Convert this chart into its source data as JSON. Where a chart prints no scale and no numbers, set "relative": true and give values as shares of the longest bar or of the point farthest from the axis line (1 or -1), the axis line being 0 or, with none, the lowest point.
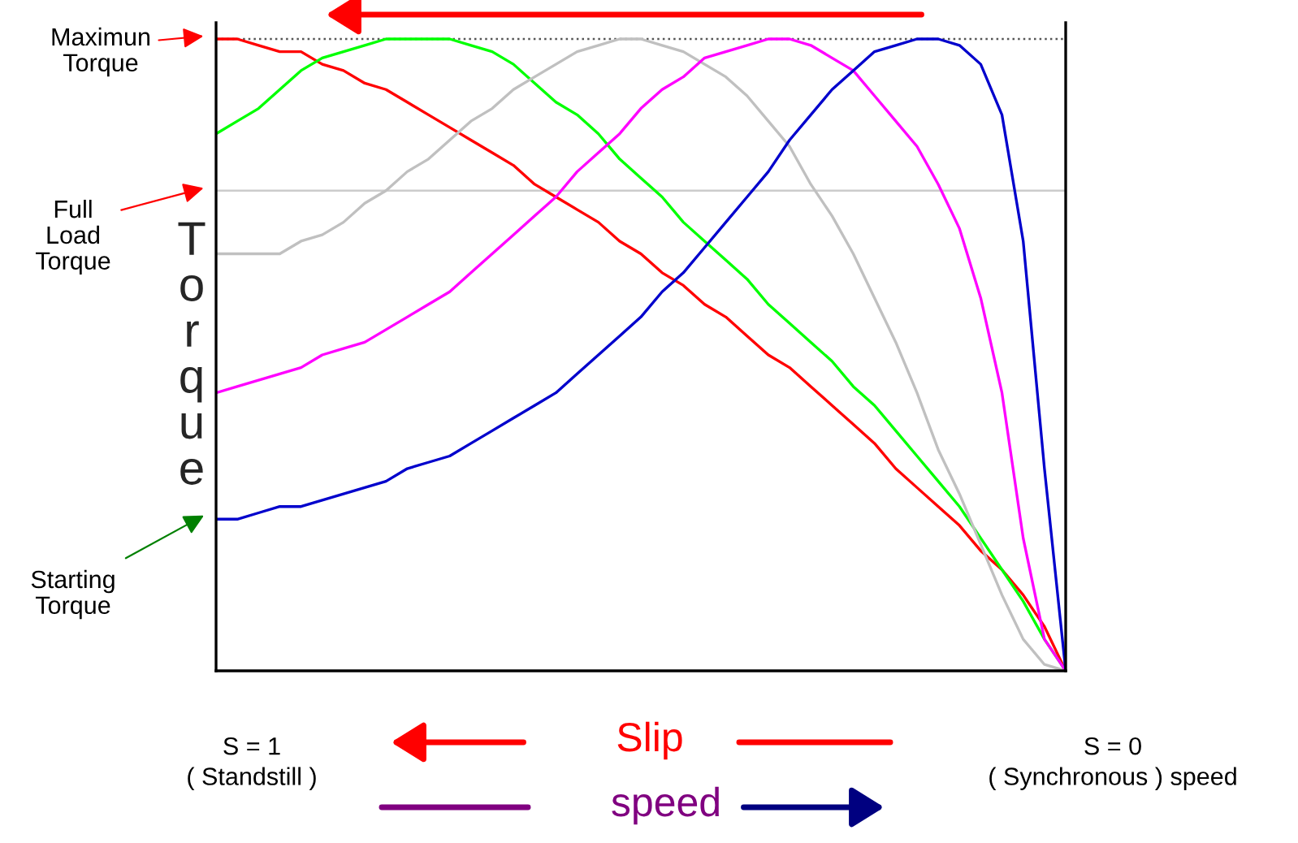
{
  "chart_data": {
    "type": "line",
    "relative": true,
    "ylabel": "Torque",
    "legend": false,
    "grid": false,
    "marker": "none",
    "line_style": "solid",
    "categories": [
      null,
      null,
      null,
      null,
      null,
      null,
      null,
      null,
      null,
      null,
      null,
      null,
      null,
      null,
      null,
      null,
      null,
      null,
      null,
      null,
      null,
      null,
      null,
      null,
      null,
      null,
      null,
      null,
      null,
      null,
      null,
      null,
      null,
      null,
      null,
      null,
      null,
      null,
      null,
      null,
      null
    ],
    "series": [
      {
        "color": "#ff0000",
        "values": [
          1.0,
          1.0,
          0.99,
          0.98,
          0.98,
          0.96,
          0.95,
          0.93,
          0.92,
          0.9,
          0.88,
          0.86,
          0.84,
          0.82,
          0.8,
          0.77,
          0.75,
          0.73,
          0.71,
          0.68,
          0.66,
          0.63,
          0.61,
          0.58,
          0.56,
          0.53,
          0.5,
          0.48,
          0.45,
          0.42,
          0.39,
          0.36,
          0.32,
          0.29,
          0.26,
          0.23,
          0.19,
          0.16,
          0.12,
          0.07,
          0
        ]
      },
      {
        "color": "#00ff00",
        "values": [
          0.85,
          0.87,
          0.89,
          0.92,
          0.95,
          0.97,
          0.98,
          0.99,
          1.0,
          1.0,
          1.0,
          1.0,
          0.99,
          0.98,
          0.96,
          0.93,
          0.9,
          0.88,
          0.85,
          0.81,
          0.78,
          0.75,
          0.71,
          0.68,
          0.65,
          0.62,
          0.58,
          0.55,
          0.52,
          0.49,
          0.45,
          0.42,
          0.38,
          0.34,
          0.3,
          0.26,
          0.21,
          0.16,
          0.11,
          0.05,
          0
        ]
      },
      {
        "color": "#c0c0c0",
        "values": [
          0.66,
          0.66,
          0.66,
          0.66,
          0.68,
          0.69,
          0.71,
          0.74,
          0.76,
          0.79,
          0.81,
          0.84,
          0.87,
          0.89,
          0.92,
          0.94,
          0.96,
          0.98,
          0.99,
          1.0,
          1.0,
          0.99,
          0.98,
          0.96,
          0.94,
          0.91,
          0.87,
          0.83,
          0.77,
          0.72,
          0.66,
          0.59,
          0.52,
          0.44,
          0.35,
          0.28,
          0.2,
          0.12,
          0.05,
          0.01,
          0
        ]
      },
      {
        "color": "#ff00ff",
        "values": [
          0.44,
          0.45,
          0.46,
          0.47,
          0.48,
          0.5,
          0.51,
          0.52,
          0.54,
          0.56,
          0.58,
          0.6,
          0.63,
          0.66,
          0.69,
          0.72,
          0.75,
          0.79,
          0.82,
          0.85,
          0.89,
          0.92,
          0.94,
          0.97,
          0.98,
          0.99,
          1.0,
          1.0,
          0.99,
          0.97,
          0.95,
          0.91,
          0.87,
          0.83,
          0.77,
          0.7,
          0.59,
          0.44,
          0.21,
          0.05,
          0
        ]
      },
      {
        "color": "#0000cc",
        "values": [
          0.24,
          0.24,
          0.25,
          0.26,
          0.26,
          0.27,
          0.28,
          0.29,
          0.3,
          0.32,
          0.33,
          0.34,
          0.36,
          0.38,
          0.4,
          0.42,
          0.44,
          0.47,
          0.5,
          0.53,
          0.56,
          0.6,
          0.63,
          0.67,
          0.71,
          0.75,
          0.79,
          0.84,
          0.88,
          0.92,
          0.95,
          0.98,
          0.99,
          1.0,
          1.0,
          0.99,
          0.96,
          0.88,
          0.68,
          0.32,
          0
        ]
      }
    ],
    "ref_lines": [
      {
        "axis": "y",
        "value": 1.0,
        "color": "#555555",
        "line_style": "dotted"
      },
      {
        "axis": "y",
        "value": 0.76,
        "color": "#cccccc",
        "line_style": "solid"
      }
    ],
    "annotations": [
      "Maximun\nTorque",
      "Full\nLoad\nTorque",
      "Starting\nTorque",
      "S = 1\n( Standstill )",
      "Slip",
      "speed",
      "S = 0\n( Synchronous ) speed"
    ]
  }
}
